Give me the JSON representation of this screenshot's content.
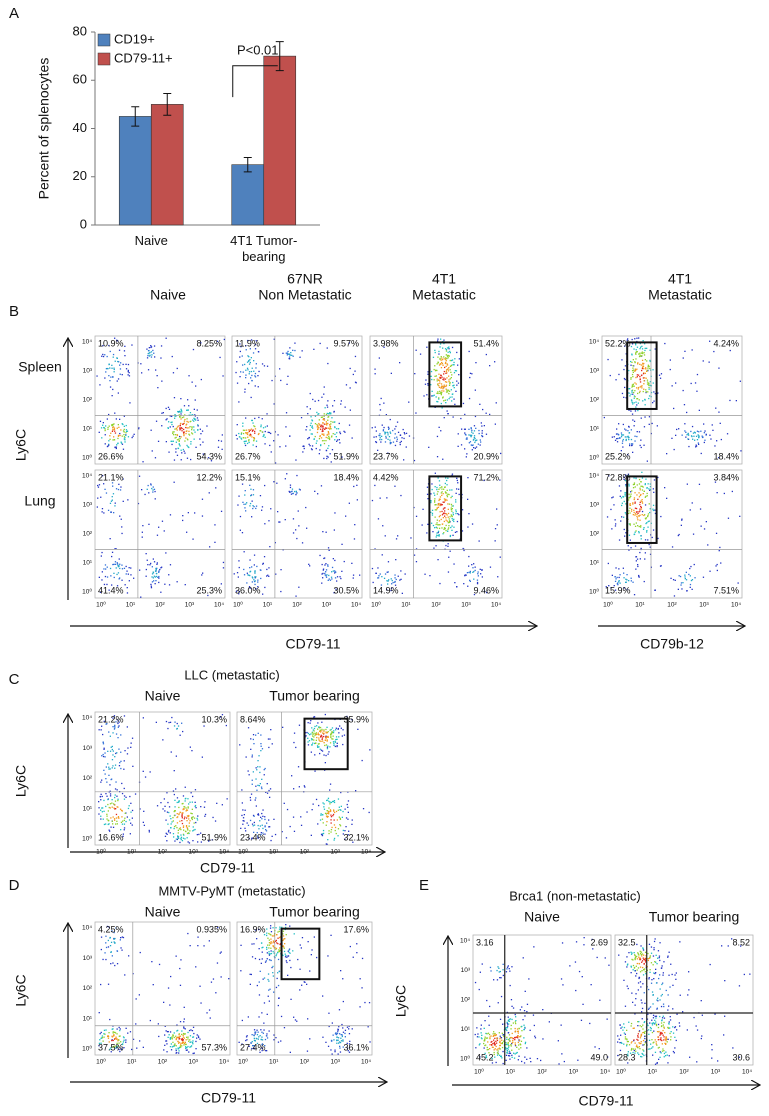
{
  "chart_data": {
    "type": "bar",
    "panel_label": "A",
    "y_label": "Percent of splenocytes",
    "categories": [
      "Naive",
      "4T1 Tumor-bearing"
    ],
    "series": [
      {
        "name": "CD19+",
        "color": "#4f81bd",
        "values": [
          45,
          25
        ],
        "errors": [
          4,
          3
        ]
      },
      {
        "name": "CD79-11+",
        "color": "#c0504d",
        "values": [
          50,
          70
        ],
        "errors": [
          4.5,
          6
        ]
      }
    ],
    "ylim": [
      0,
      80
    ],
    "yticks": [
      0,
      20,
      40,
      60,
      80
    ],
    "annotation": "P<0.01",
    "legend": "upper left"
  },
  "flow_axis_ticks": [
    "10⁰",
    "10¹",
    "10²",
    "10³",
    "10⁴"
  ],
  "panel_b": {
    "label": "B",
    "column_titles": [
      [
        "Naive"
      ],
      [
        "67NR",
        "Non Metastatic"
      ],
      [
        "4T1",
        "Metastatic"
      ],
      [
        "4T1",
        "Metastatic"
      ]
    ],
    "row_labels": [
      "Spleen",
      "Lung"
    ],
    "y_label": "Ly6C",
    "x_labels": [
      "CD79-11",
      "CD79b-12"
    ],
    "quadrants": [
      [
        [
          "10.9%",
          "8.25%",
          "26.6%",
          "54.3%"
        ],
        [
          "11.9%",
          "9.57%",
          "26.7%",
          "51.9%"
        ],
        [
          "3.98%",
          "51.4%",
          "23.7%",
          "20.9%"
        ],
        [
          "52.2%",
          "4.24%",
          "25.2%",
          "18.4%"
        ]
      ],
      [
        [
          "21.1%",
          "12.2%",
          "41.4%",
          "25.3%"
        ],
        [
          "15.1%",
          "18.4%",
          "36.0%",
          "30.5%"
        ],
        [
          "4.42%",
          "71.2%",
          "14.9%",
          "9.46%"
        ],
        [
          "72.8%",
          "3.84%",
          "15.9%",
          "7.51%"
        ]
      ]
    ]
  },
  "panel_c": {
    "label": "C",
    "title": "LLC (metastatic)",
    "column_titles": [
      "Naive",
      "Tumor bearing"
    ],
    "y_label": "Ly6C",
    "x_label": "CD79-11",
    "quadrants": [
      [
        "21.2%",
        "10.3%",
        "16.6%",
        "51.9%"
      ],
      [
        "8.64%",
        "35.9%",
        "23.4%",
        "32.1%"
      ]
    ]
  },
  "panel_d": {
    "label": "D",
    "title": "MMTV-PyMT (metastatic)",
    "column_titles": [
      "Naive",
      "Tumor bearing"
    ],
    "y_label": "Ly6C",
    "x_label": "CD79-11",
    "quadrants": [
      [
        "4.25%",
        "0.935%",
        "37.5%",
        "57.3%"
      ],
      [
        "16.9%",
        "17.6%",
        "27.4%",
        "36.1%"
      ]
    ]
  },
  "panel_e": {
    "label": "E",
    "title": "Brca1 (non-metastatic)",
    "column_titles": [
      "Naive",
      "Tumor bearing"
    ],
    "y_label": "Ly6C",
    "x_label": "CD79-11",
    "quadrants": [
      [
        "3.16",
        "2.69",
        "45.2",
        "49.0"
      ],
      [
        "32.5",
        "8.52",
        "28.3",
        "30.6"
      ]
    ]
  }
}
